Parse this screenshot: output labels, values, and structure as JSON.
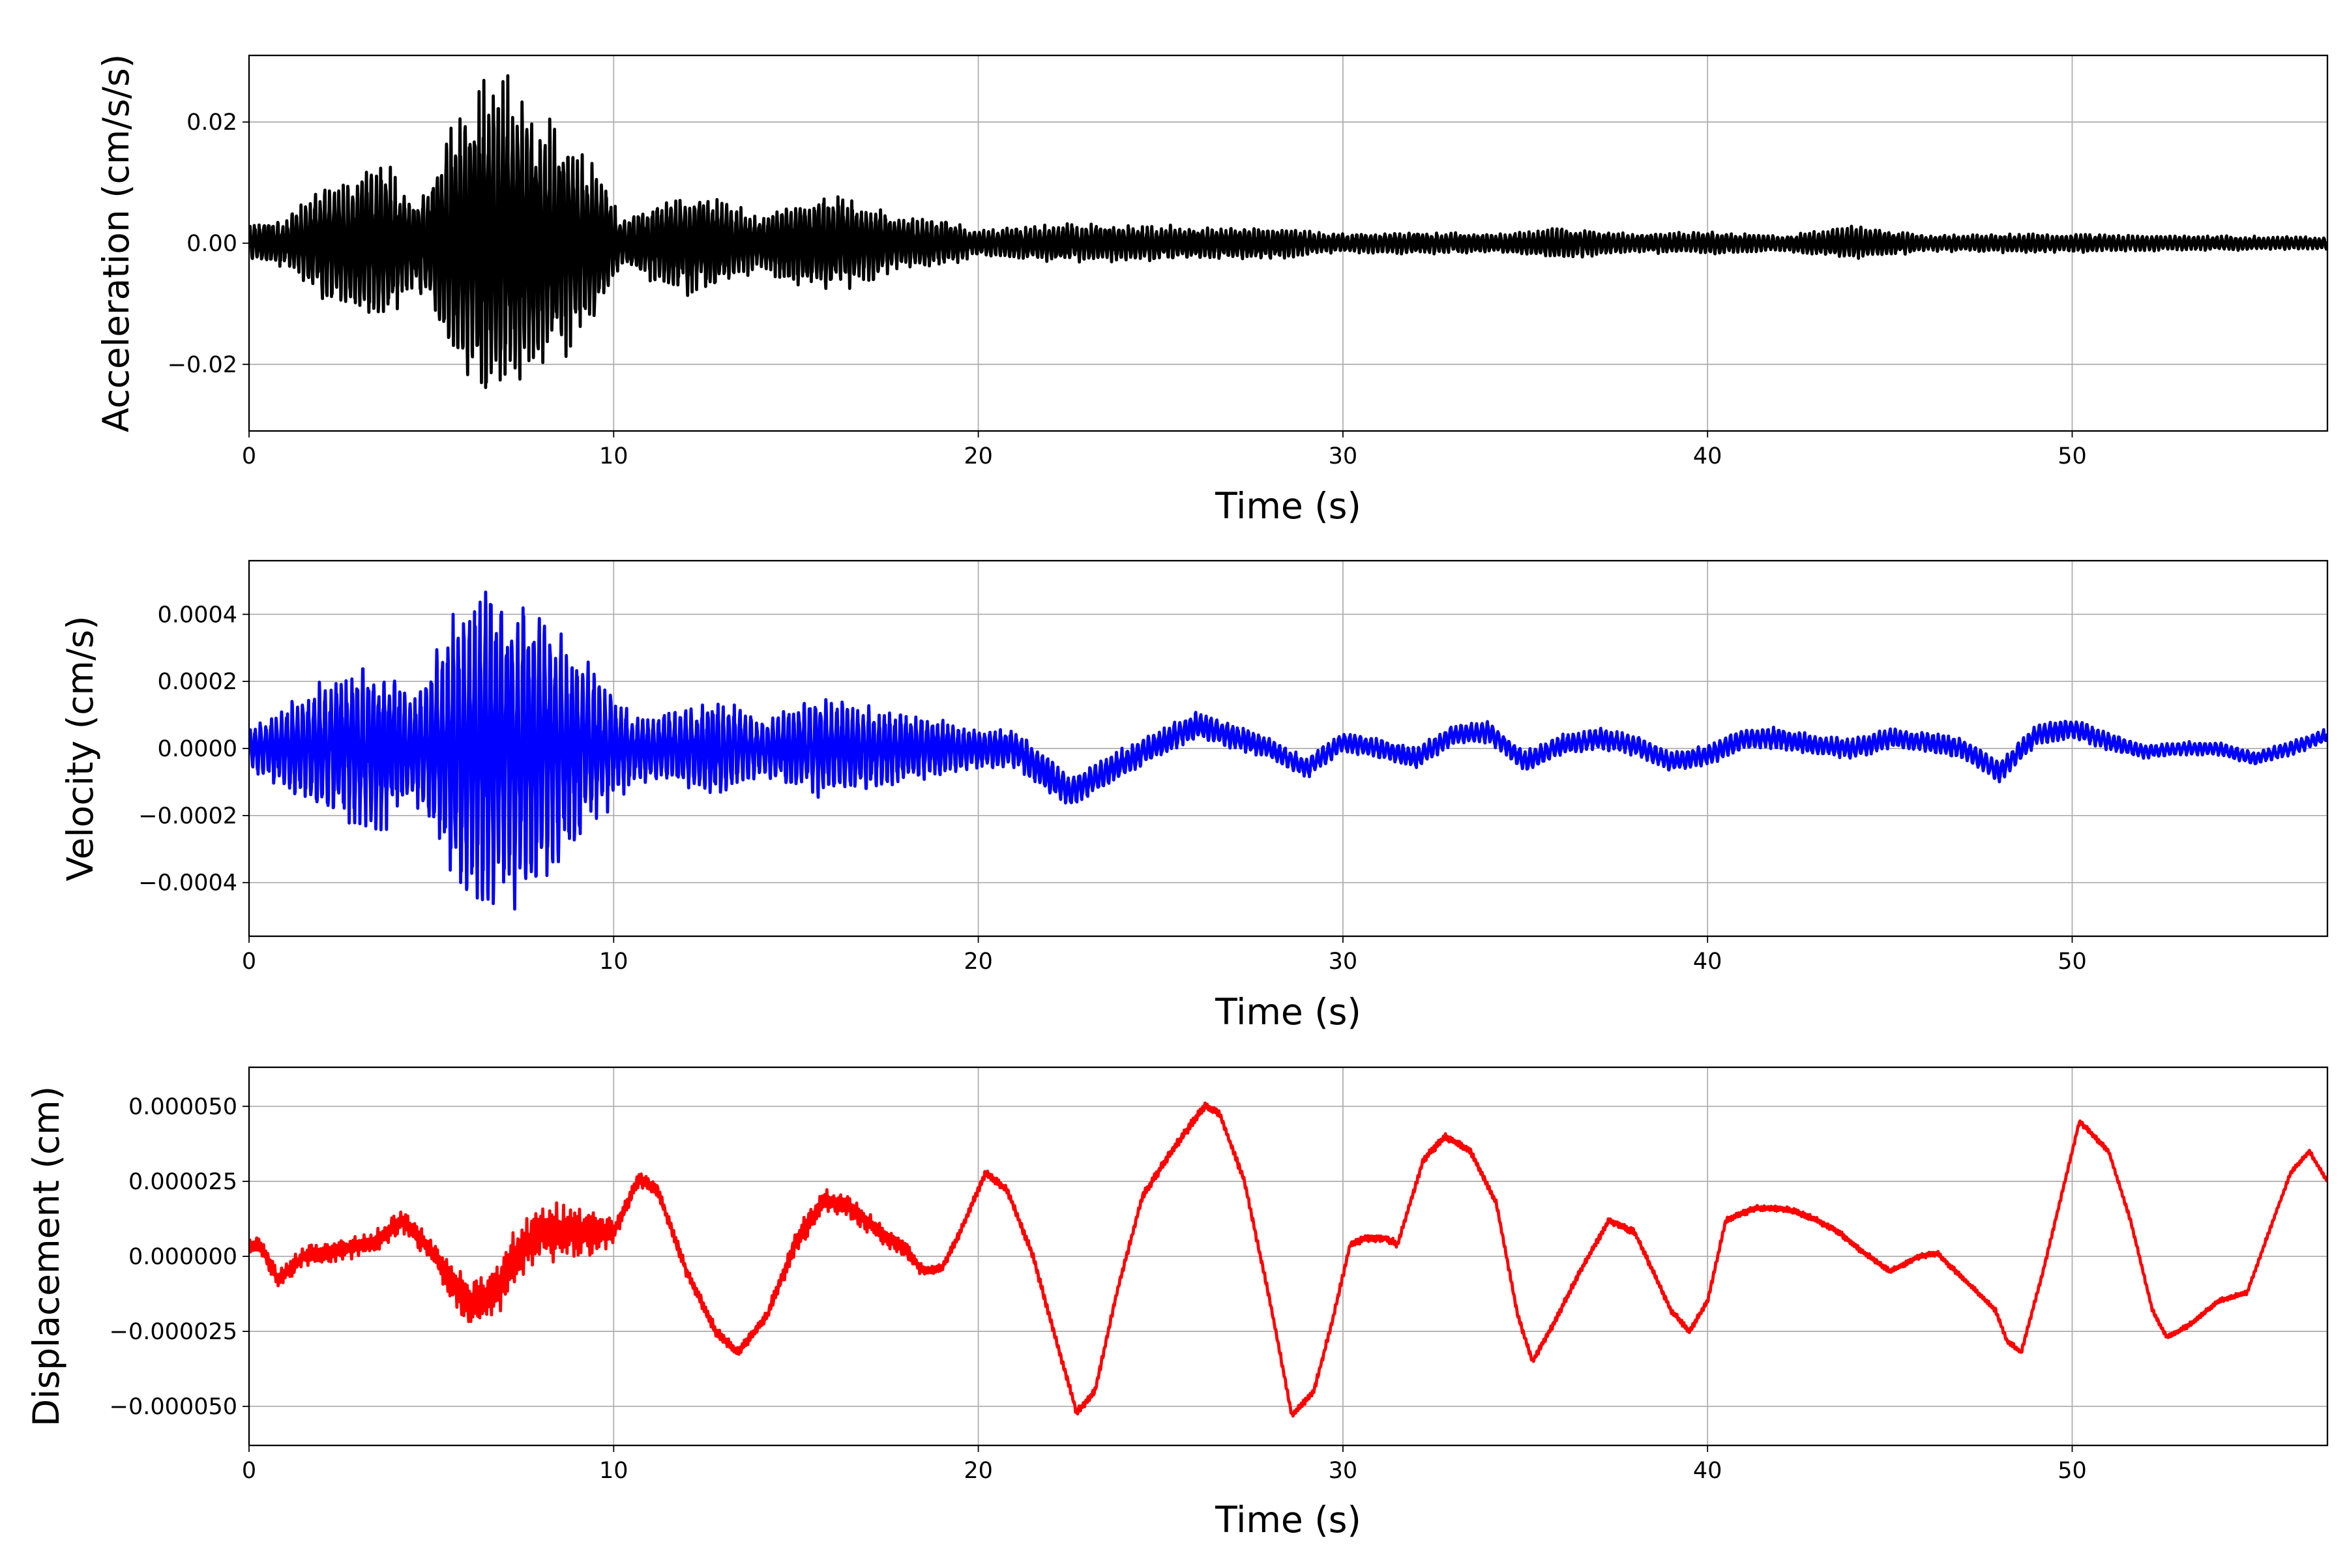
{
  "chart_data": [
    {
      "type": "line",
      "xlabel": "Time (s)",
      "ylabel": "Acceleration (cm/s/s)",
      "xlim": [
        0,
        57
      ],
      "ylim": [
        -0.031,
        0.031
      ],
      "xticks": [
        0,
        10,
        20,
        30,
        40,
        50
      ],
      "xtick_labels": [
        "0",
        "10",
        "20",
        "30",
        "40",
        "50"
      ],
      "yticks": [
        -0.02,
        0.0,
        0.02
      ],
      "ytick_labels": [
        "−0.02",
        "0.00",
        "0.02"
      ],
      "grid": true,
      "color": "#000000",
      "trend": {
        "kind": "oscillatory",
        "carrier_frequency_hz": 2.3,
        "envelope_t": [
          0,
          1,
          2,
          3,
          3.8,
          4.5,
          5,
          5.5,
          6.5,
          7.5,
          8.5,
          9.5,
          10.2,
          11,
          12,
          13,
          14,
          15,
          16,
          17,
          18,
          19,
          20,
          22,
          24,
          26,
          28,
          30,
          32,
          34,
          36,
          38,
          40,
          42,
          44,
          46,
          48,
          50,
          52,
          54,
          57
        ],
        "envelope_amplitude": [
          0.003,
          0.004,
          0.009,
          0.012,
          0.013,
          0.007,
          0.011,
          0.019,
          0.027,
          0.024,
          0.018,
          0.013,
          0.004,
          0.006,
          0.008,
          0.0075,
          0.004,
          0.0075,
          0.008,
          0.006,
          0.004,
          0.004,
          0.002,
          0.003,
          0.003,
          0.0025,
          0.0025,
          0.0015,
          0.0018,
          0.0015,
          0.0025,
          0.0015,
          0.0018,
          0.0012,
          0.0028,
          0.0012,
          0.0015,
          0.0015,
          0.0012,
          0.0012,
          0.001
        ]
      }
    },
    {
      "type": "line",
      "xlabel": "Time (s)",
      "ylabel": "Velocity (cm/s)",
      "xlim": [
        0,
        57
      ],
      "ylim": [
        -0.00056,
        0.00056
      ],
      "xticks": [
        0,
        10,
        20,
        30,
        40,
        50
      ],
      "xtick_labels": [
        "0",
        "10",
        "20",
        "30",
        "40",
        "50"
      ],
      "yticks": [
        -0.0004,
        -0.0002,
        0.0,
        0.0002,
        0.0004
      ],
      "ytick_labels": [
        "−0.0004",
        "−0.0002",
        "0.0000",
        "0.0002",
        "0.0004"
      ],
      "grid": true,
      "color": "#0000ff",
      "trend": {
        "kind": "oscillatory",
        "carrier_frequency_hz": 2.0,
        "envelope_t": [
          0,
          1,
          2,
          3,
          3.8,
          4.5,
          5,
          5.5,
          6.5,
          7.5,
          8.5,
          9.5,
          10.5,
          12,
          13,
          14,
          15,
          16,
          17,
          18,
          19,
          20,
          22,
          24,
          26,
          28,
          30,
          32,
          34,
          36,
          38,
          40,
          42,
          44,
          46,
          48,
          50,
          52,
          54,
          57
        ],
        "envelope_amplitude": [
          6e-05,
          0.00012,
          0.0002,
          0.00023,
          0.00024,
          0.00015,
          0.00025,
          0.00038,
          0.00048,
          0.00045,
          0.00036,
          0.00022,
          0.0001,
          0.00012,
          0.00014,
          8e-05,
          0.00013,
          0.00014,
          0.00012,
          0.0001,
          8e-05,
          6e-05,
          5e-05,
          4e-05,
          4e-05,
          3e-05,
          3e-05,
          3e-05,
          3e-05,
          3e-05,
          3e-05,
          3e-05,
          3e-05,
          3e-05,
          3e-05,
          3e-05,
          3e-05,
          2e-05,
          2e-05,
          2e-05
        ],
        "drift_t": [
          0,
          20,
          21,
          22.5,
          24,
          26,
          28,
          29,
          30,
          31,
          32,
          33,
          34,
          35,
          36,
          37,
          38,
          39,
          40,
          41,
          42,
          43,
          44,
          45,
          46,
          47,
          48,
          49,
          50,
          51,
          52,
          53,
          54,
          55,
          56,
          57
        ],
        "drift_value": [
          0,
          0,
          0,
          -0.00013,
          -4e-05,
          7e-05,
          0.0,
          -6e-05,
          2e-05,
          0.0,
          -3e-05,
          4e-05,
          5e-05,
          -4e-05,
          1e-05,
          3e-05,
          1e-05,
          -4e-05,
          -2e-05,
          3e-05,
          3e-05,
          1e-05,
          0.0,
          3e-05,
          2e-05,
          0.0,
          -7e-05,
          4e-05,
          6e-05,
          2e-05,
          -1e-05,
          0.0,
          0.0,
          -3e-05,
          0.0,
          4e-05
        ]
      }
    },
    {
      "type": "line",
      "xlabel": "Time (s)",
      "ylabel": "Displacement (cm)",
      "xlim": [
        0,
        57
      ],
      "ylim": [
        -6.3e-05,
        6.3e-05
      ],
      "xticks": [
        0,
        10,
        20,
        30,
        40,
        50
      ],
      "xtick_labels": [
        "0",
        "10",
        "20",
        "30",
        "40",
        "50"
      ],
      "yticks": [
        -5e-05,
        -2.5e-05,
        0.0,
        2.5e-05,
        5e-05
      ],
      "ytick_labels": [
        "−0.000050",
        "−0.000025",
        "0.000000",
        "0.000025",
        "0.000050"
      ],
      "grid": true,
      "color": "#ff0000",
      "x": [
        0,
        0.3,
        0.8,
        1.5,
        2.5,
        3.5,
        4.2,
        5.0,
        5.5,
        6.1,
        6.8,
        7.3,
        8.0,
        9.0,
        10.0,
        10.7,
        11.2,
        12.0,
        12.8,
        13.4,
        14.2,
        15.0,
        15.8,
        16.5,
        17.5,
        18.0,
        18.5,
        19.0,
        19.5,
        20.2,
        20.8,
        21.5,
        22.0,
        22.7,
        23.2,
        23.8,
        24.5,
        25.3,
        26.2,
        26.6,
        27.3,
        28.0,
        28.6,
        29.2,
        29.7,
        30.2,
        30.6,
        31.2,
        31.5,
        31.9,
        32.2,
        32.8,
        33.5,
        34.2,
        34.8,
        35.2,
        35.8,
        36.5,
        37.3,
        38.0,
        38.5,
        39.0,
        39.5,
        40.0,
        40.5,
        41.3,
        42.0,
        42.4,
        43.0,
        43.6,
        44.2,
        45.0,
        45.8,
        46.3,
        46.8,
        47.4,
        47.9,
        48.2,
        48.6,
        49.2,
        50.2,
        51.0,
        51.6,
        52.2,
        52.6,
        53.2,
        54.0,
        54.8,
        55.6,
        56.0,
        56.5,
        57.0
      ],
      "y": [
        3e-06,
        4e-06,
        -8e-06,
        0.0,
        2e-06,
        5e-06,
        1.2e-05,
        2e-06,
        -8e-06,
        -1.6e-05,
        -1.2e-05,
        0.0,
        8e-06,
        8e-06,
        8e-06,
        2.6e-05,
        2.2e-05,
        -5e-06,
        -2.5e-05,
        -3.2e-05,
        -2e-05,
        5e-06,
        1.9e-05,
        1.6e-05,
        6e-06,
        2e-06,
        -5e-06,
        -4e-06,
        8e-06,
        2.8e-05,
        2.2e-05,
        0.0,
        -2.2e-05,
        -5.2e-05,
        -4.5e-05,
        -1.2e-05,
        2e-05,
        3.5e-05,
        5e-05,
        4.8e-05,
        2.5e-05,
        -1.5e-05,
        -5.3e-05,
        -4.5e-05,
        -2.2e-05,
        4e-06,
        6e-06,
        6e-06,
        4e-06,
        2e-05,
        3.2e-05,
        4e-05,
        3.5e-05,
        1.8e-05,
        -2e-05,
        -3.5e-05,
        -2.2e-05,
        -5e-06,
        1.2e-05,
        8e-06,
        -5e-06,
        -1.8e-05,
        -2.5e-05,
        -1.5e-05,
        1.2e-05,
        1.6e-05,
        1.6e-05,
        1.5e-05,
        1.2e-05,
        8e-06,
        2e-06,
        -5e-06,
        0.0,
        1e-06,
        -5e-06,
        -1.2e-05,
        -1.8e-05,
        -2.8e-05,
        -3.2e-05,
        -5e-06,
        4.5e-05,
        3.5e-05,
        1.2e-05,
        -1.8e-05,
        -2.7e-05,
        -2.3e-05,
        -1.5e-05,
        -1.2e-05,
        1.5e-05,
        2.8e-05,
        3.5e-05,
        2.5e-05
      ],
      "jitter_t": [
        0,
        5,
        6,
        9,
        10.2,
        14,
        15,
        18,
        19,
        57
      ],
      "jitter_amplitude": [
        2e-06,
        3e-06,
        6e-06,
        7e-06,
        2e-06,
        1e-06,
        3e-06,
        2e-06,
        1e-06,
        5e-07
      ]
    }
  ]
}
